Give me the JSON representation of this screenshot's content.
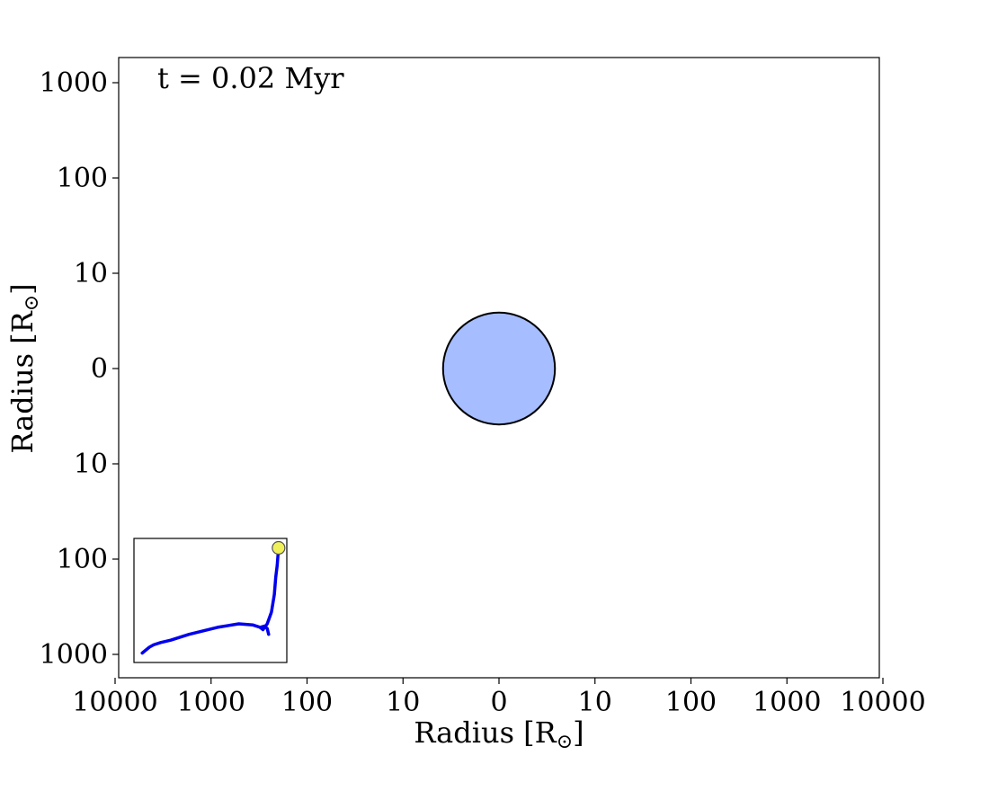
{
  "chart_data": {
    "type": "scatter",
    "annotation": "t = 0.02 Myr",
    "xlabel": "Radius [R",
    "ylabel": "Radius [R",
    "label_symbol": "⊙",
    "label_close": "]",
    "x_tick_labels": [
      "10000",
      "1000",
      "100",
      "10",
      "0",
      "10",
      "100",
      "1000",
      "10000"
    ],
    "y_tick_labels": [
      "1000",
      "100",
      "10",
      "0",
      "10",
      "100",
      "1000"
    ],
    "scale": "symmetric-log",
    "xlim": [
      -10000,
      10000
    ],
    "ylim": [
      -1000,
      1000
    ],
    "grid": false,
    "star": {
      "center": [
        0,
        0
      ],
      "radius_rsun": 5.2,
      "fill_color": "#a6bdff",
      "edge_color": "#000000"
    },
    "inset": {
      "type": "line",
      "description_visible": false,
      "track_color": "#0000ee",
      "marker_color": "#f0f05a",
      "track": [
        [
          0.98,
          0.95
        ],
        [
          0.93,
          0.9
        ],
        [
          0.9,
          0.88
        ],
        [
          0.85,
          0.86
        ],
        [
          0.78,
          0.84
        ],
        [
          0.65,
          0.79
        ],
        [
          0.45,
          0.73
        ],
        [
          0.3,
          0.7
        ],
        [
          0.2,
          0.71
        ],
        [
          0.15,
          0.73
        ],
        [
          0.13,
          0.75
        ],
        [
          0.1,
          0.7
        ],
        [
          0.07,
          0.6
        ],
        [
          0.05,
          0.45
        ],
        [
          0.04,
          0.3
        ],
        [
          0.03,
          0.2
        ],
        [
          0.02,
          0.05
        ]
      ],
      "hook": [
        [
          0.15,
          0.73
        ],
        [
          0.12,
          0.72
        ],
        [
          0.1,
          0.74
        ],
        [
          0.09,
          0.79
        ]
      ],
      "marker": [
        0.02,
        0.05
      ]
    }
  }
}
